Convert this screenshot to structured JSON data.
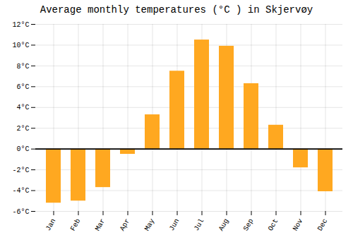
{
  "chart_data": {
    "type": "bar",
    "title": "Average monthly temperatures (°C ) in Skjervøy",
    "categories": [
      "Jan",
      "Feb",
      "Mar",
      "Apr",
      "May",
      "Jun",
      "Jul",
      "Aug",
      "Sep",
      "Oct",
      "Nov",
      "Dec"
    ],
    "values": [
      -5.2,
      -5.0,
      -3.7,
      -0.5,
      3.3,
      7.5,
      10.5,
      9.9,
      6.3,
      2.3,
      -1.8,
      -4.1
    ],
    "color": "#FFA820",
    "ylim": [
      -6,
      12
    ],
    "yticks": [
      {
        "value": -6,
        "label": "-6°C"
      },
      {
        "value": -4,
        "label": "-4°C"
      },
      {
        "value": -2,
        "label": "-2°C"
      },
      {
        "value": 0,
        "label": "0°C"
      },
      {
        "value": 2,
        "label": "2°C"
      },
      {
        "value": 4,
        "label": "4°C"
      },
      {
        "value": 6,
        "label": "6°C"
      },
      {
        "value": 8,
        "label": "8°C"
      },
      {
        "value": 10,
        "label": "10°C"
      },
      {
        "value": 12,
        "label": "12°C"
      }
    ],
    "grid": true
  }
}
